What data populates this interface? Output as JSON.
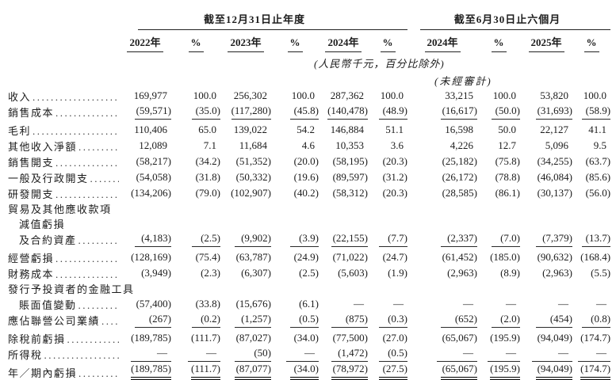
{
  "page": {
    "background": "#ffffff",
    "text_color": "#1c1c1c",
    "rule_color": "#222222"
  },
  "table": {
    "column_groups": [
      {
        "label": "截至12月31日止年度",
        "span": 6
      },
      {
        "label": "截至6月30日止六個月",
        "span": 4
      }
    ],
    "column_headers": [
      "2022年",
      "%",
      "2023年",
      "%",
      "2024年",
      "%",
      "2024年",
      "%",
      "2025年",
      "%"
    ],
    "unit_note": "(人民幣千元，百分比除外)",
    "unaudited_note": "(未經審計)",
    "rows": [
      {
        "label": "收入",
        "indent": 0,
        "bold": false,
        "dots": true,
        "underline": null,
        "values": [
          "169,977",
          "100.0",
          "256,302",
          "100.0",
          "287,362",
          "100.0",
          "33,215",
          "100.0",
          "53,820",
          "100.0"
        ]
      },
      {
        "label": "銷售成本",
        "indent": 0,
        "bold": false,
        "dots": true,
        "underline": "single",
        "values": [
          "(59,571)",
          "(35.0)",
          "(117,280)",
          "(45.8)",
          "(140,478)",
          "(48.9)",
          "(16,617)",
          "(50.0)",
          "(31,693)",
          "(58.9)"
        ]
      },
      {
        "label": "毛利",
        "indent": 0,
        "bold": true,
        "dots": true,
        "underline": null,
        "values": [
          "110,406",
          "65.0",
          "139,022",
          "54.2",
          "146,884",
          "51.1",
          "16,598",
          "50.0",
          "22,127",
          "41.1"
        ]
      },
      {
        "label": "其他收入淨額",
        "indent": 0,
        "bold": false,
        "dots": true,
        "underline": null,
        "values": [
          "12,089",
          "7.1",
          "11,684",
          "4.6",
          "10,353",
          "3.6",
          "4,226",
          "12.7",
          "5,096",
          "9.5"
        ]
      },
      {
        "label": "銷售開支",
        "indent": 0,
        "bold": false,
        "dots": true,
        "underline": null,
        "values": [
          "(58,217)",
          "(34.2)",
          "(51,352)",
          "(20.0)",
          "(58,195)",
          "(20.3)",
          "(25,182)",
          "(75.8)",
          "(34,255)",
          "(63.7)"
        ]
      },
      {
        "label": "一般及行政開支",
        "indent": 0,
        "bold": false,
        "dots": true,
        "underline": null,
        "values": [
          "(54,058)",
          "(31.8)",
          "(50,332)",
          "(19.6)",
          "(89,597)",
          "(31.2)",
          "(26,172)",
          "(78.8)",
          "(46,084)",
          "(85.6)"
        ]
      },
      {
        "label": "研發開支",
        "indent": 0,
        "bold": false,
        "dots": true,
        "underline": null,
        "values": [
          "(134,206)",
          "(79.0)",
          "(102,907)",
          "(40.2)",
          "(58,312)",
          "(20.3)",
          "(28,585)",
          "(86.1)",
          "(30,137)",
          "(56.0)"
        ]
      },
      {
        "label": "貿易及其他應收款項",
        "indent": 0,
        "bold": false,
        "dots": false,
        "underline": null,
        "values": null
      },
      {
        "label": "減值虧損",
        "indent": 1,
        "bold": false,
        "dots": false,
        "underline": null,
        "values": null
      },
      {
        "label": "及合約資產",
        "indent": 1,
        "bold": false,
        "dots": true,
        "underline": "single",
        "values": [
          "(4,183)",
          "(2.5)",
          "(9,902)",
          "(3.9)",
          "(22,155)",
          "(7.7)",
          "(2,337)",
          "(7.0)",
          "(7,379)",
          "(13.7)"
        ]
      },
      {
        "label": "經營虧損",
        "indent": 0,
        "bold": true,
        "dots": true,
        "underline": null,
        "values": [
          "(128,169)",
          "(75.4)",
          "(63,787)",
          "(24.9)",
          "(71,022)",
          "(24.7)",
          "(61,452)",
          "(185.0)",
          "(90,632)",
          "(168.4)"
        ]
      },
      {
        "label": "財務成本",
        "indent": 0,
        "bold": false,
        "dots": true,
        "underline": null,
        "values": [
          "(3,949)",
          "(2.3)",
          "(6,307)",
          "(2.5)",
          "(5,603)",
          "(1.9)",
          "(2,963)",
          "(8.9)",
          "(2,963)",
          "(5.5)"
        ]
      },
      {
        "label": "發行予投資者的金融工具",
        "indent": 0,
        "bold": false,
        "dots": false,
        "underline": null,
        "values": null
      },
      {
        "label": "賬面值變動",
        "indent": 1,
        "bold": false,
        "dots": true,
        "underline": null,
        "values": [
          "(57,400)",
          "(33.8)",
          "(15,676)",
          "(6.1)",
          "—",
          "—",
          "—",
          "—",
          "—",
          "—"
        ]
      },
      {
        "label": "應佔聯營公司業績",
        "indent": 0,
        "bold": false,
        "dots": true,
        "underline": "single",
        "values": [
          "(267)",
          "(0.2)",
          "(1,257)",
          "(0.5)",
          "(875)",
          "(0.3)",
          "(652)",
          "(2.0)",
          "(454)",
          "(0.8)"
        ]
      },
      {
        "label": "除稅前虧損",
        "indent": 0,
        "bold": true,
        "dots": true,
        "underline": null,
        "values": [
          "(189,785)",
          "(111.7)",
          "(87,027)",
          "(34.0)",
          "(77,500)",
          "(27.0)",
          "(65,067)",
          "(195.9)",
          "(94,049)",
          "(174.7)"
        ]
      },
      {
        "label": "所得稅",
        "indent": 0,
        "bold": false,
        "dots": true,
        "underline": "single",
        "values": [
          "—",
          "—",
          "(50)",
          "—",
          "(1,472)",
          "(0.5)",
          "—",
          "—",
          "—",
          "—"
        ]
      },
      {
        "label": "年／期內虧損",
        "indent": 0,
        "bold": true,
        "dots": true,
        "underline": "double",
        "values": [
          "(189,785)",
          "(111.7)",
          "(87,077)",
          "(34.0)",
          "(78,972)",
          "(27.5)",
          "(65,067)",
          "(195.9)",
          "(94,049)",
          "(174.7)"
        ]
      }
    ]
  }
}
